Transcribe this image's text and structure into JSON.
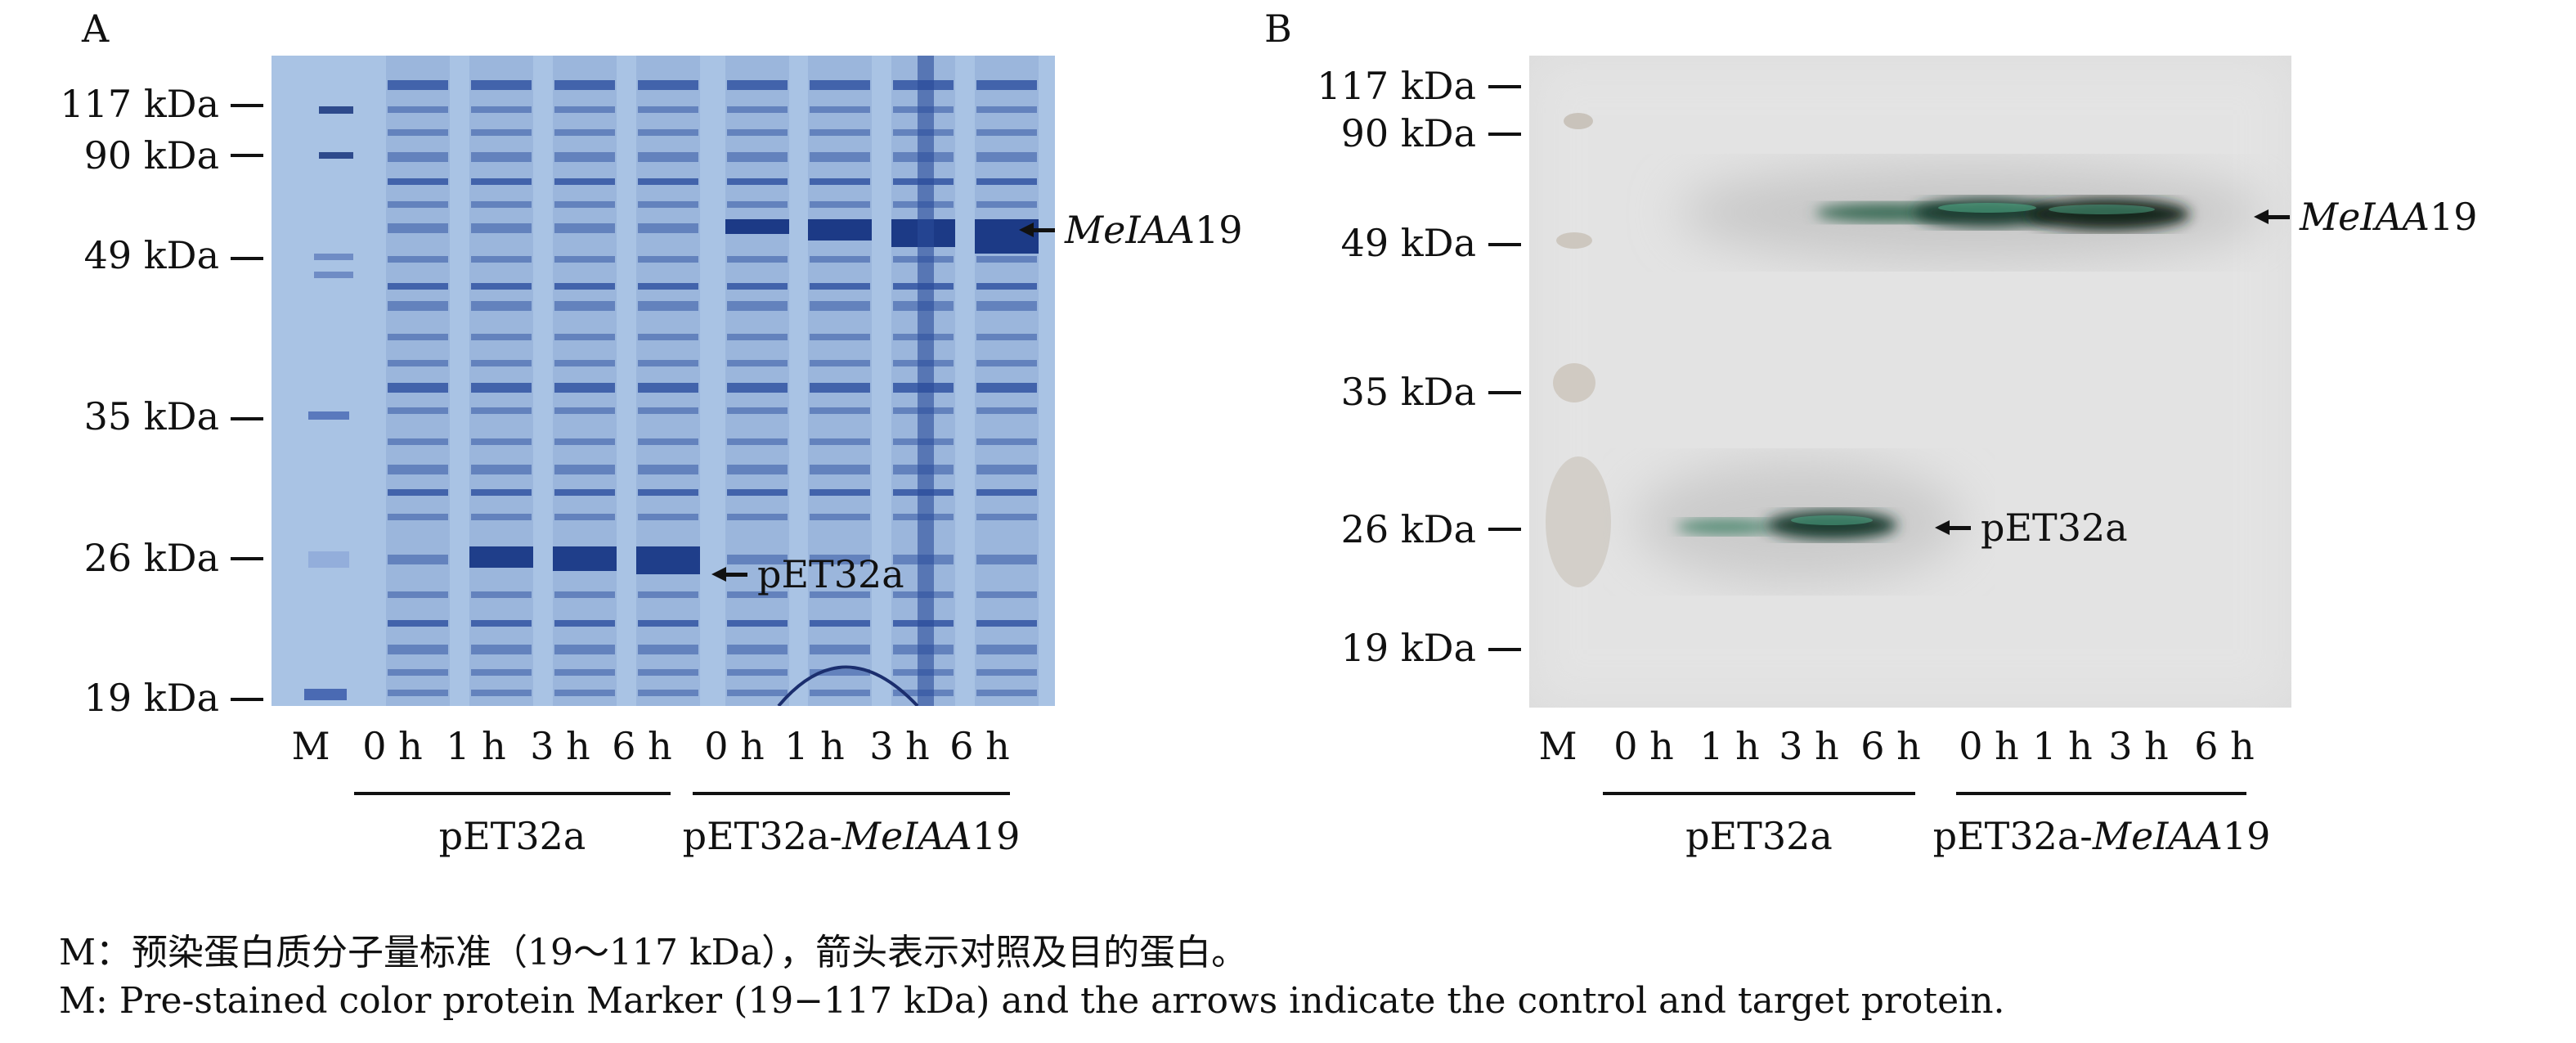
{
  "panel_a": {
    "label": "A",
    "markers": [
      "117 kDa",
      "90 kDa",
      "49 kDa",
      "35 kDa",
      "26 kDa",
      "19 kDa"
    ],
    "lanes": [
      "M",
      "0 h",
      "1 h",
      "3 h",
      "6 h",
      "0 h",
      "1 h",
      "3 h",
      "6 h"
    ],
    "group1": "pET32a",
    "group2_prefix": "pET32a-",
    "group2_gene": "MeIAA",
    "group2_suffix": "19",
    "arrow_top_gene": "MeIAA",
    "arrow_top_num": "19",
    "arrow_bottom": "pET32a"
  },
  "panel_b": {
    "label": "B",
    "markers": [
      "117 kDa",
      "90 kDa",
      "49 kDa",
      "35 kDa",
      "26 kDa",
      "19 kDa"
    ],
    "lanes": [
      "M",
      "0 h",
      "1 h",
      "3 h",
      "6 h",
      "0 h",
      "1 h",
      "3 h",
      "6 h"
    ],
    "group1": "pET32a",
    "group2_prefix": "pET32a-",
    "group2_gene": "MeIAA",
    "group2_suffix": "19",
    "arrow_top_gene": "MeIAA",
    "arrow_top_num": "19",
    "arrow_bottom": "pET32a"
  },
  "caption": {
    "cn": "M：预染蛋白质分子量标准（19～117 kDa），箭头表示对照及目的蛋白。",
    "en": "M: Pre-stained color protein Marker (19−117 kDa) and the arrows indicate the control and target protein."
  },
  "colors": {
    "gel_a_bg": "#a9c3e4",
    "gel_a_band": "#3d5fa8",
    "gel_b_bg": "#dcdcdc",
    "band_b": "#1e3d33"
  }
}
